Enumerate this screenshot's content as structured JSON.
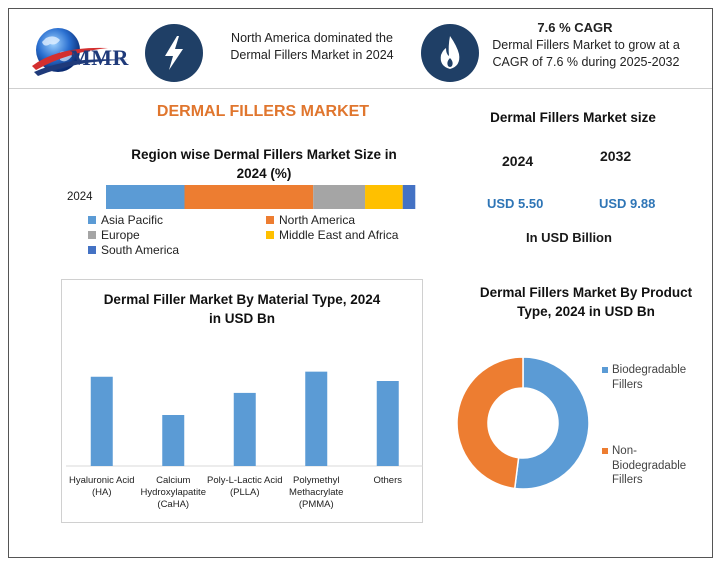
{
  "logo": {
    "text": "MMR",
    "icon": "globe-icon"
  },
  "header": {
    "left_icon": "lightning-icon",
    "left_text": "North America dominated the Dermal Fillers Market in 2024",
    "right_icon": "flame-icon",
    "right_title": "7.6 % CAGR",
    "right_text": "Dermal Fillers Market to grow at a CAGR of 7.6 % during 2025-2032"
  },
  "title": "DERMAL FILLERS MARKET",
  "market_size": {
    "title": "Dermal Fillers Market size",
    "year1": "2024",
    "year2": "2032",
    "value1": "USD 5.50",
    "value2": "USD 9.88",
    "unit": "In USD Billion"
  },
  "colors": {
    "blue": "#5b9bd5",
    "orange": "#ed7d31",
    "gray": "#a5a5a5",
    "yellow": "#ffc000",
    "darkblue": "#4472c4",
    "header_circle": "#1f3f66",
    "title_orange": "#e0762e"
  },
  "chart_data": [
    {
      "type": "bar",
      "orientation": "horizontal-stacked",
      "title": "Region wise Dermal Fillers Market Size in 2024 (%)",
      "categories": [
        "2024"
      ],
      "series": [
        {
          "name": "Asia Pacific",
          "values": [
            25
          ]
        },
        {
          "name": "North America",
          "values": [
            41
          ]
        },
        {
          "name": "Europe",
          "values": [
            16.5
          ]
        },
        {
          "name": "Middle East and Africa",
          "values": [
            12
          ]
        },
        {
          "name": "South America",
          "values": [
            4
          ]
        }
      ],
      "xlim": [
        0,
        100
      ],
      "legend": "bottom",
      "grid": false
    },
    {
      "type": "bar",
      "title": "Dermal Filler Market By Material Type, 2024 in USD Bn",
      "categories": [
        "Hyaluronic Acid (HA)",
        "Calcium Hydroxylapatite (CaHA)",
        "Poly-L-Lactic Acid (PLLA)",
        "Polymethyl Methacrylate (PMMA)",
        "Others"
      ],
      "values": [
        1.05,
        0.6,
        0.86,
        1.11,
        1.0
      ],
      "ylim": [
        0,
        1.2
      ],
      "grid": false,
      "legend": "none"
    },
    {
      "type": "pie",
      "subtype": "donut",
      "title": "Dermal Fillers Market By Product Type, 2024 in USD Bn",
      "categories": [
        "Biodegradable Fillers",
        "Non-Biodegradable Fillers"
      ],
      "values": [
        52,
        48
      ],
      "legend": "right"
    }
  ]
}
